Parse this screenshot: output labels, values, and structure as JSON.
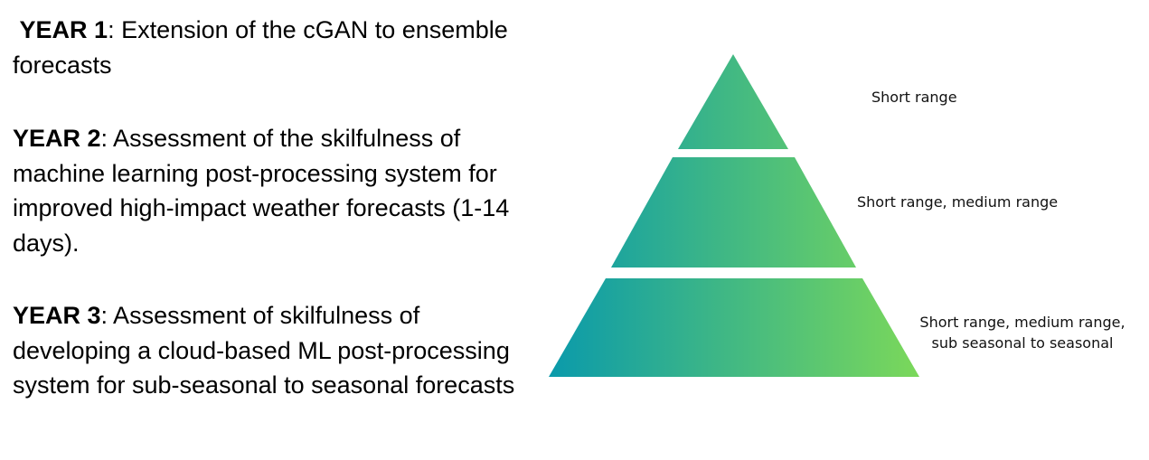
{
  "years": [
    {
      "label": "YEAR 1",
      "description": ": Extension of the  cGAN to ensemble forecasts"
    },
    {
      "label": "YEAR 2",
      "description": ": Assessment of the skilfulness of machine learning post-processing system for improved high-impact weather forecasts (1-14 days)."
    },
    {
      "label": "YEAR 3",
      "description": ": Assessment of skilfulness of developing a cloud-based ML post-processing system for sub-seasonal to seasonal forecasts"
    }
  ],
  "pyramid": {
    "tiers": [
      {
        "label": "Short range"
      },
      {
        "label": "Short range, medium range"
      },
      {
        "label": "Short range, medium range, sub seasonal to seasonal"
      }
    ],
    "gradient": {
      "start_color": "#0a9aab",
      "end_color": "#7bd85a"
    }
  }
}
